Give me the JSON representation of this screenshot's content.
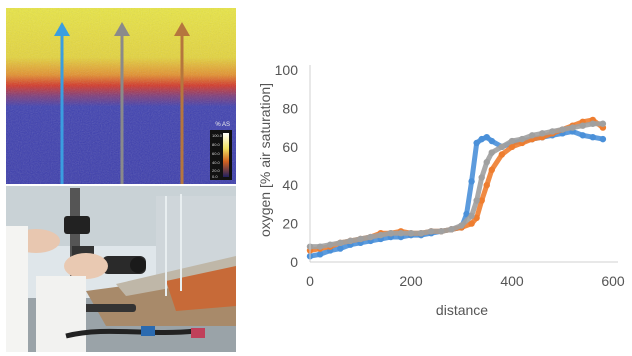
{
  "heatmap": {
    "scale_unit": "% AS",
    "scale_ticks": [
      "100.0",
      "80.0",
      "60.0",
      "40.0",
      "20.0",
      "0.0"
    ],
    "arrow_colors": [
      "#3a9ee0",
      "#8a8a8a",
      "#b5763e"
    ]
  },
  "photo": {
    "description_icon": "microscope-photo-icon"
  },
  "chart_data": {
    "type": "scatter",
    "title": "",
    "xlabel": "distance",
    "ylabel": "oxygen [% air saturation]",
    "xlim": [
      0,
      600
    ],
    "ylim": [
      0,
      100
    ],
    "xticks": [
      0,
      200,
      400,
      600
    ],
    "yticks": [
      0,
      20,
      40,
      60,
      80,
      100
    ],
    "grid": false,
    "legend": "none",
    "series": [
      {
        "color": "#4a90d9",
        "x": [
          0,
          20,
          40,
          60,
          80,
          100,
          120,
          140,
          160,
          180,
          200,
          220,
          240,
          260,
          280,
          300,
          310,
          320,
          330,
          340,
          350,
          360,
          380,
          400,
          420,
          440,
          460,
          480,
          500,
          520,
          540,
          560,
          580
        ],
        "y": [
          3,
          4,
          6,
          7,
          9,
          10,
          11,
          12,
          13,
          13,
          14,
          14,
          15,
          16,
          17,
          18,
          25,
          42,
          62,
          64,
          65,
          63,
          60,
          62,
          63,
          64,
          65,
          66,
          67,
          68,
          66,
          65,
          64
        ]
      },
      {
        "color": "#ee7d2f",
        "x": [
          0,
          20,
          40,
          60,
          80,
          100,
          120,
          140,
          160,
          180,
          200,
          220,
          240,
          260,
          280,
          300,
          320,
          330,
          340,
          350,
          360,
          380,
          400,
          420,
          440,
          460,
          480,
          500,
          520,
          540,
          560,
          580
        ],
        "y": [
          6,
          7,
          8,
          10,
          11,
          12,
          13,
          15,
          15,
          16,
          15,
          15,
          16,
          16,
          17,
          18,
          20,
          23,
          32,
          40,
          48,
          56,
          60,
          62,
          64,
          65,
          67,
          69,
          71,
          73,
          74,
          70
        ]
      },
      {
        "color": "#a0a0a0",
        "x": [
          0,
          20,
          40,
          60,
          80,
          100,
          120,
          140,
          160,
          180,
          200,
          220,
          240,
          260,
          280,
          300,
          320,
          330,
          340,
          350,
          360,
          380,
          400,
          420,
          440,
          460,
          480,
          500,
          520,
          540,
          560,
          580
        ],
        "y": [
          8,
          8,
          9,
          10,
          11,
          12,
          13,
          14,
          15,
          15,
          15,
          15,
          16,
          16,
          17,
          19,
          24,
          32,
          44,
          52,
          57,
          60,
          63,
          64,
          66,
          67,
          68,
          69,
          70,
          71,
          72,
          72
        ]
      }
    ]
  }
}
